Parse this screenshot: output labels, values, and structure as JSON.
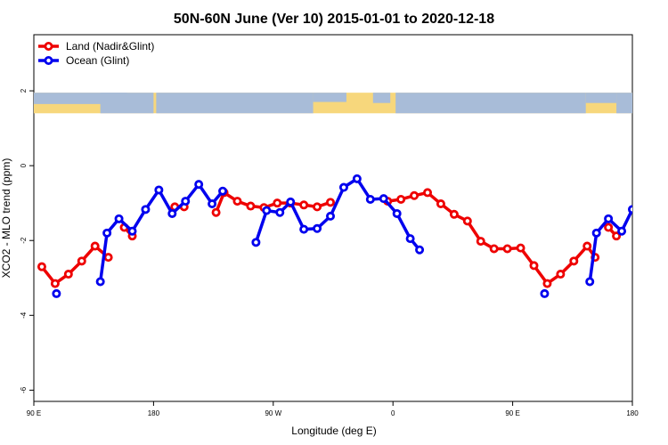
{
  "chart_data": {
    "type": "line",
    "title": "50N-60N June (Ver 10)   2015-01-01 to 2020-12-18",
    "xlabel": "Longitude (deg E)",
    "ylabel": "XCO2 - MLO trend (ppm)",
    "xlim": [
      90,
      540
    ],
    "ylim": [
      -6.3,
      3.5
    ],
    "x_ticks": [
      {
        "value": 90,
        "label": "90 E"
      },
      {
        "value": 180,
        "label": "180"
      },
      {
        "value": 270,
        "label": "90 W"
      },
      {
        "value": 360,
        "label": "0"
      },
      {
        "value": 450,
        "label": "90 E"
      },
      {
        "value": 540,
        "label": "180"
      }
    ],
    "y_ticks": [
      {
        "value": 2,
        "label": "2"
      },
      {
        "value": 0,
        "label": "0"
      },
      {
        "value": -2,
        "label": "-2"
      },
      {
        "value": -4,
        "label": "-4"
      },
      {
        "value": -6,
        "label": "-6"
      }
    ],
    "map_band": {
      "y_top": 1.95,
      "y_bottom": 1.4,
      "land_color": "#a8bcd8",
      "ocean_color": "#f7d77c"
    },
    "legend_position": "top-left",
    "series": [
      {
        "name": "Land (Nadir&Glint)",
        "color": "#ee0000",
        "segments": [
          [
            [
              96,
              -2.7
            ],
            [
              106,
              -3.15
            ],
            [
              116,
              -2.9
            ],
            [
              126,
              -2.55
            ],
            [
              136,
              -2.15
            ],
            [
              146,
              -2.45
            ]
          ],
          [
            [
              158,
              -1.65
            ],
            [
              164,
              -1.88
            ]
          ],
          [
            [
              196,
              -1.1
            ],
            [
              203,
              -1.1
            ]
          ],
          [
            [
              227,
              -1.25
            ],
            [
              233,
              -0.72
            ],
            [
              243,
              -0.95
            ],
            [
              253,
              -1.08
            ],
            [
              263,
              -1.12
            ],
            [
              273,
              -1.0
            ],
            [
              283,
              -1.0
            ],
            [
              293,
              -1.05
            ],
            [
              303,
              -1.1
            ],
            [
              313,
              -0.98
            ]
          ],
          [
            [
              356,
              -0.95
            ],
            [
              366,
              -0.9
            ],
            [
              376,
              -0.8
            ],
            [
              386,
              -0.72
            ],
            [
              396,
              -1.02
            ],
            [
              406,
              -1.3
            ],
            [
              416,
              -1.48
            ],
            [
              426,
              -2.02
            ],
            [
              436,
              -2.22
            ],
            [
              446,
              -2.22
            ],
            [
              456,
              -2.2
            ],
            [
              466,
              -2.67
            ],
            [
              476,
              -3.15
            ],
            [
              486,
              -2.9
            ],
            [
              496,
              -2.55
            ],
            [
              506,
              -2.15
            ],
            [
              512,
              -2.45
            ]
          ],
          [
            [
              522,
              -1.65
            ],
            [
              528,
              -1.88
            ]
          ]
        ]
      },
      {
        "name": "Ocean (Glint)",
        "color": "#0000ee",
        "segments": [
          [
            [
              107,
              -3.42
            ]
          ],
          [
            [
              140,
              -3.1
            ],
            [
              145,
              -1.8
            ],
            [
              154,
              -1.42
            ],
            [
              164,
              -1.75
            ],
            [
              174,
              -1.17
            ],
            [
              184,
              -0.65
            ],
            [
              194,
              -1.28
            ],
            [
              204,
              -0.95
            ],
            [
              214,
              -0.5
            ],
            [
              224,
              -1.02
            ],
            [
              232,
              -0.68
            ]
          ],
          [
            [
              257,
              -2.05
            ],
            [
              265,
              -1.2
            ],
            [
              275,
              -1.25
            ],
            [
              283,
              -0.97
            ],
            [
              293,
              -1.7
            ],
            [
              303,
              -1.68
            ],
            [
              313,
              -1.35
            ],
            [
              323,
              -0.58
            ],
            [
              333,
              -0.35
            ],
            [
              343,
              -0.9
            ],
            [
              353,
              -0.88
            ],
            [
              363,
              -1.28
            ],
            [
              373,
              -1.95
            ],
            [
              380,
              -2.25
            ]
          ],
          [
            [
              474,
              -3.42
            ]
          ],
          [
            [
              508,
              -3.1
            ],
            [
              513,
              -1.8
            ],
            [
              522,
              -1.42
            ],
            [
              532,
              -1.75
            ],
            [
              540,
              -1.17
            ]
          ]
        ]
      }
    ]
  }
}
